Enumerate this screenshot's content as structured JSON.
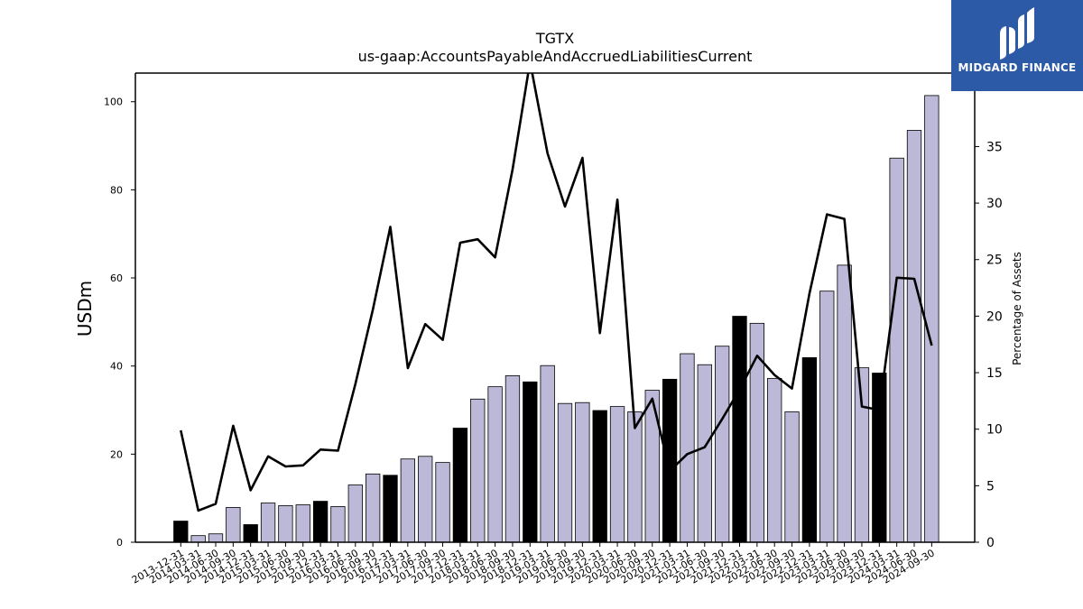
{
  "brand": {
    "name": "MIDGARD FINANCE",
    "bg_color": "#2c5aa6"
  },
  "chart_data": {
    "type": "bar",
    "title": "TGTX",
    "subtitle": "us-gaap:AccountsPayableAndAccruedLiabilitiesCurrent",
    "ylabel": "USDm",
    "y2label": "Percentage of Assets",
    "ylim": [
      0,
      106.5
    ],
    "y2lim": [
      0,
      41.5
    ],
    "yticks": [
      0,
      20,
      40,
      60,
      80,
      100
    ],
    "y2ticks": [
      0,
      5,
      10,
      15,
      20,
      25,
      30,
      35
    ],
    "bar_color": "#bcb8d8",
    "highlight_color": "#000000",
    "line_color": "#000000",
    "categories": [
      "2013-12-31",
      "2014-03-31",
      "2014-06-30",
      "2014-09-30",
      "2014-12-31",
      "2015-03-31",
      "2015-06-30",
      "2015-09-30",
      "2015-12-31",
      "2016-03-31",
      "2016-06-30",
      "2016-09-30",
      "2016-12-31",
      "2017-03-31",
      "2017-06-30",
      "2017-09-30",
      "2017-12-31",
      "2018-03-31",
      "2018-06-30",
      "2018-09-30",
      "2018-12-31",
      "2019-03-31",
      "2019-06-30",
      "2019-09-30",
      "2019-12-31",
      "2020-03-31",
      "2020-06-30",
      "2020-09-30",
      "2020-12-31",
      "2021-03-31",
      "2021-06-30",
      "2021-09-30",
      "2021-12-31",
      "2022-03-31",
      "2022-06-30",
      "2022-09-30",
      "2022-12-31",
      "2023-03-31",
      "2023-06-30",
      "2023-09-30",
      "2023-12-31",
      "2024-03-31",
      "2024-06-30",
      "2024-09-30"
    ],
    "series": [
      {
        "type": "bar",
        "values": [
          4.8,
          1.5,
          1.9,
          7.9,
          4.0,
          8.9,
          8.3,
          8.5,
          9.3,
          8.1,
          13.0,
          15.5,
          15.2,
          18.9,
          19.5,
          18.1,
          25.9,
          32.5,
          35.3,
          37.8,
          36.4,
          40.1,
          31.5,
          31.7,
          29.9,
          30.8,
          29.6,
          34.5,
          37.0,
          42.8,
          40.3,
          44.5,
          51.3,
          49.7,
          37.2,
          29.6,
          41.9,
          57.0,
          62.9,
          39.6,
          38.4,
          87.2,
          93.5,
          101.4
        ],
        "highlighted": [
          true,
          false,
          false,
          false,
          true,
          false,
          false,
          false,
          true,
          false,
          false,
          false,
          true,
          false,
          false,
          false,
          true,
          false,
          false,
          false,
          true,
          false,
          false,
          false,
          true,
          false,
          false,
          false,
          true,
          false,
          false,
          false,
          true,
          false,
          false,
          false,
          true,
          false,
          false,
          false,
          true,
          false,
          false,
          false
        ]
      },
      {
        "type": "line",
        "axis": "right",
        "values": [
          9.9,
          2.8,
          3.4,
          10.3,
          4.6,
          7.6,
          6.7,
          6.8,
          8.2,
          8.1,
          14.0,
          20.6,
          27.9,
          15.4,
          19.3,
          17.9,
          26.5,
          26.8,
          25.2,
          33.0,
          42.5,
          34.4,
          29.7,
          34.0,
          18.5,
          30.3,
          10.1,
          12.7,
          6.3,
          7.8,
          8.4,
          10.9,
          13.5,
          16.5,
          14.8,
          13.6,
          22.0,
          29.0,
          28.6,
          12.0,
          11.7,
          23.4,
          23.3,
          17.4
        ]
      }
    ]
  }
}
